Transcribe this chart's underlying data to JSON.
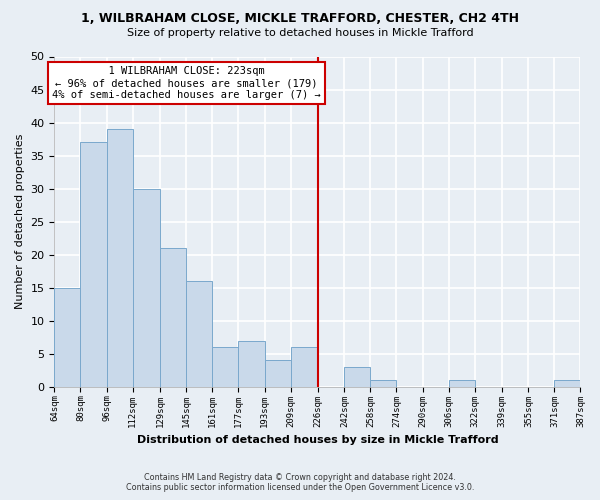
{
  "title_line1": "1, WILBRAHAM CLOSE, MICKLE TRAFFORD, CHESTER, CH2 4TH",
  "title_line2": "Size of property relative to detached houses in Mickle Trafford",
  "xlabel": "Distribution of detached houses by size in Mickle Trafford",
  "ylabel": "Number of detached properties",
  "bar_edges": [
    64,
    80,
    96,
    112,
    129,
    145,
    161,
    177,
    193,
    209,
    226,
    242,
    258,
    274,
    290,
    306,
    322,
    339,
    355,
    371,
    387
  ],
  "bar_heights": [
    15,
    37,
    39,
    30,
    21,
    16,
    6,
    7,
    4,
    6,
    0,
    3,
    1,
    0,
    0,
    1,
    0,
    0,
    0,
    1,
    0
  ],
  "tick_labels": [
    "64sqm",
    "80sqm",
    "96sqm",
    "112sqm",
    "129sqm",
    "145sqm",
    "161sqm",
    "177sqm",
    "193sqm",
    "209sqm",
    "226sqm",
    "242sqm",
    "258sqm",
    "274sqm",
    "290sqm",
    "306sqm",
    "322sqm",
    "339sqm",
    "355sqm",
    "371sqm",
    "387sqm"
  ],
  "bar_color": "#c9d9ea",
  "bar_edge_color": "#7aa8cc",
  "property_line_x": 226,
  "property_line_color": "#cc0000",
  "ylim": [
    0,
    50
  ],
  "yticks": [
    0,
    5,
    10,
    15,
    20,
    25,
    30,
    35,
    40,
    45,
    50
  ],
  "annotation_title": "1 WILBRAHAM CLOSE: 223sqm",
  "annotation_line1": "← 96% of detached houses are smaller (179)",
  "annotation_line2": "4% of semi-detached houses are larger (7) →",
  "annotation_box_color": "#ffffff",
  "annotation_border_color": "#cc0000",
  "footer_line1": "Contains HM Land Registry data © Crown copyright and database right 2024.",
  "footer_line2": "Contains public sector information licensed under the Open Government Licence v3.0.",
  "background_color": "#e8eef4"
}
